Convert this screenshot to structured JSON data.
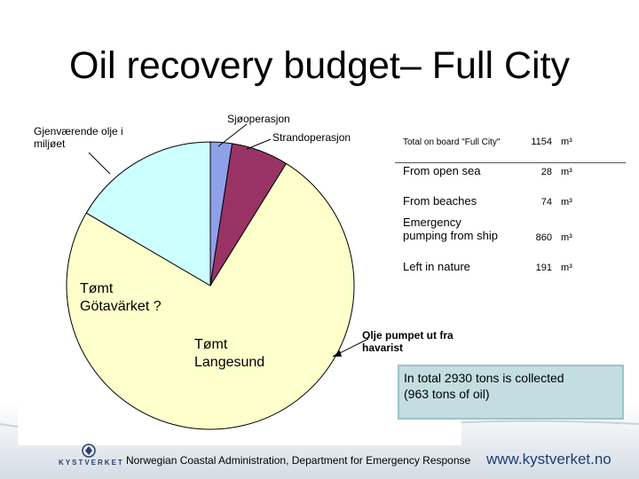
{
  "slide": {
    "title": "Oil recovery budget– Full City"
  },
  "chart_data": {
    "type": "pie",
    "title": "",
    "slices": [
      {
        "name": "Sjøoperasjon",
        "value": 28,
        "color": "#8fa0e8"
      },
      {
        "name": "Strandoperasjon",
        "value": 74,
        "color": "#993366"
      },
      {
        "name": "Olje pumpet ut fra havarist",
        "value": 860,
        "color": "#ffffcc"
      },
      {
        "name": "Gjenværende olje i miljøet",
        "value": 191,
        "color": "#ccffff"
      }
    ],
    "labels": {
      "sjo": "Sjøoperasjon",
      "strand": "Strandoperasjon",
      "gjen": "Gjenværende olje i\nmiljøet",
      "olje": "Olje pumpet ut fra\nhavarist",
      "gota": "Tømt\nGötavärket ?",
      "langesund": "Tømt\nLangesund"
    }
  },
  "table": {
    "rows": [
      {
        "label": "Total on board \"Full City\"",
        "value": "1154",
        "unit": "m³"
      },
      {
        "label": "From open sea",
        "value": "28",
        "unit": "m³"
      },
      {
        "label": "From beaches",
        "value": "74",
        "unit": "m³"
      },
      {
        "label": "Emergency\npumping from ship",
        "value": "860",
        "unit": "m³"
      },
      {
        "label": "Left in nature",
        "value": "191",
        "unit": "m³"
      }
    ]
  },
  "note": {
    "text": "In total 2930 tons is collected\n(963 tons of oil)"
  },
  "footer": {
    "text": "Norwegian Coastal Administration, Department for Emergency Response",
    "logo_text": "KYSTVERKET",
    "website": "www.kystverket.no"
  }
}
